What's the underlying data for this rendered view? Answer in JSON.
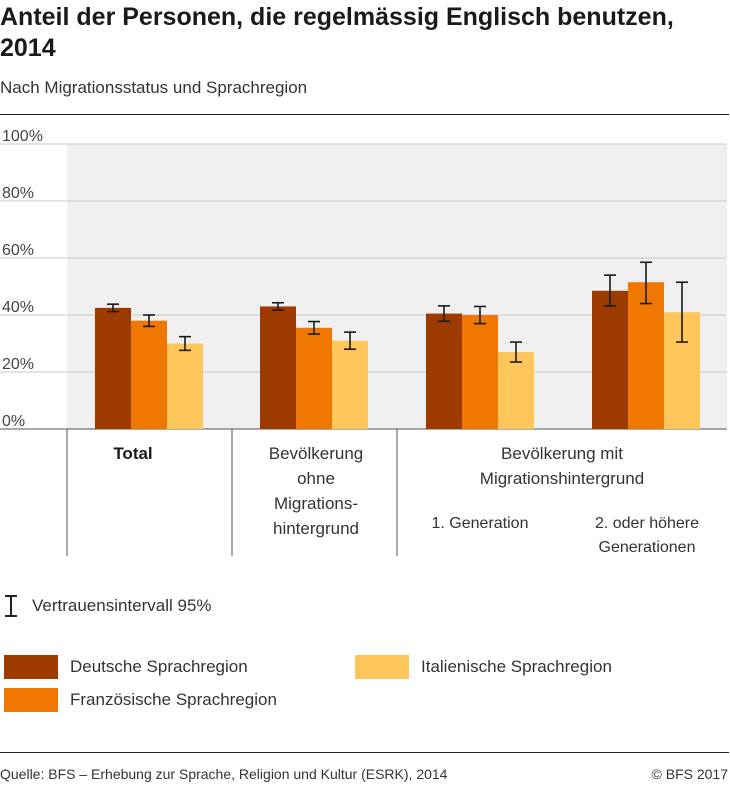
{
  "chart_data": {
    "type": "bar",
    "title": "Anteil der Personen, die regelmässig Englisch benutzen, 2014",
    "subtitle": "Nach Migrationsstatus und Sprachregion",
    "ylim": [
      0,
      100
    ],
    "yticks": [
      0,
      20,
      40,
      60,
      80,
      100
    ],
    "ytick_labels": [
      "0%",
      "20%",
      "40%",
      "60%",
      "80%",
      "100%"
    ],
    "grid": true,
    "categories": [
      "Total",
      "Bevölkerung ohne Migrationshintergrund",
      "Bevölkerung mit Migrationshintergrund – 1. Generation",
      "Bevölkerung mit Migrationshintergrund – 2. oder höhere Generationen"
    ],
    "category_labels": {
      "total": "Total",
      "ohne": [
        "Bevölkerung",
        "ohne",
        "Migrations-",
        "hintergrund"
      ],
      "mit": [
        "Bevölkerung mit",
        "Migrationshintergrund"
      ],
      "gen1": "1. Generation",
      "gen2": [
        "2. oder höhere",
        "Generationen"
      ]
    },
    "series": [
      {
        "name": "Deutsche Sprachregion",
        "color": "#9c3a00",
        "values": [
          42.5,
          43.0,
          40.5,
          48.5
        ],
        "ci": [
          [
            41.2,
            43.8
          ],
          [
            41.7,
            44.3
          ],
          [
            37.8,
            43.2
          ],
          [
            43.2,
            54.0
          ]
        ]
      },
      {
        "name": "Französische Sprachregion",
        "color": "#f07800",
        "values": [
          38.0,
          35.5,
          40.0,
          51.5
        ],
        "ci": [
          [
            36.0,
            40.0
          ],
          [
            33.3,
            37.7
          ],
          [
            37.0,
            43.0
          ],
          [
            44.0,
            58.5
          ]
        ]
      },
      {
        "name": "Italienische Sprachregion",
        "color": "#ffc65c",
        "values": [
          30.0,
          31.0,
          27.0,
          41.0
        ],
        "ci": [
          [
            27.6,
            32.4
          ],
          [
            28.0,
            34.0
          ],
          [
            23.5,
            30.5
          ],
          [
            30.5,
            51.5
          ]
        ]
      }
    ]
  },
  "legend": {
    "ci_label": "Vertrauensintervall 95%",
    "items": [
      "Deutsche Sprachregion",
      "Französische Sprachregion",
      "Italienische Sprachregion"
    ]
  },
  "footer": {
    "source": "Quelle: BFS – Erhebung zur Sprache, Religion und Kultur (ESRK), 2014",
    "copyright": "© BFS 2017"
  }
}
